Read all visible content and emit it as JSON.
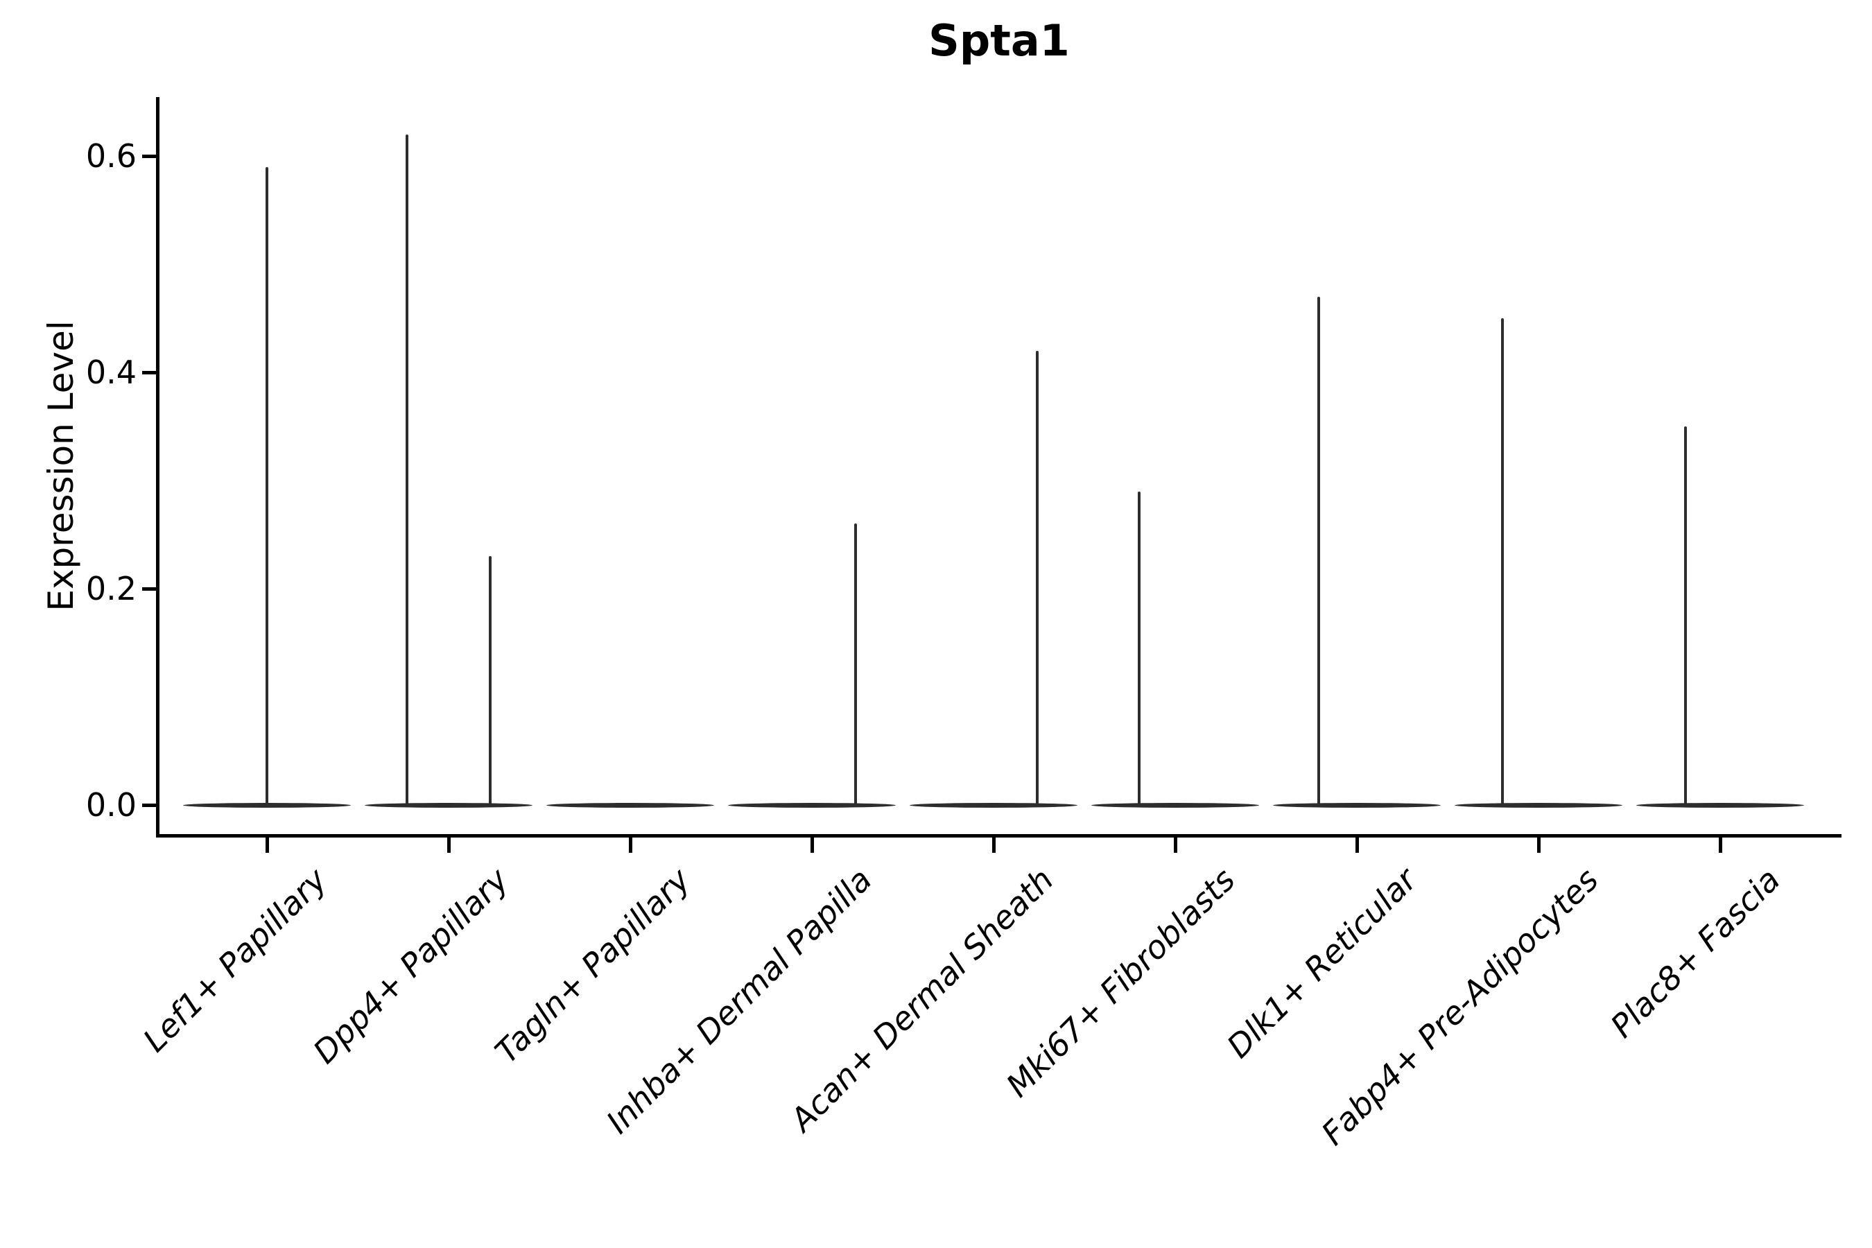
{
  "title": "Spta1",
  "chart_data": {
    "type": "violin",
    "title": "Spta1",
    "ylabel": "Expression Level",
    "xlabel": "",
    "ytick_labels": [
      "0.0",
      "0.2",
      "0.4",
      "0.6"
    ],
    "ytick_values": [
      0.0,
      0.2,
      0.4,
      0.6
    ],
    "ylim": [
      -0.028,
      0.653
    ],
    "grid": false,
    "legend": "none",
    "categories": [
      "Lef1+ Papillary",
      "Dpp4+ Papillary",
      "Tagln+ Papillary",
      "Inhba+ Dermal Papilla",
      "Acan+ Dermal Sheath",
      "Mki67+ Fibroblasts",
      "Dlk1+ Reticular",
      "Fabp4+ Pre-Adipocytes",
      "Plac8+ Fascia"
    ],
    "violins": [
      {
        "category": "Lef1+ Papillary",
        "bulk_at_zero": true,
        "spikes": [
          {
            "offset": 0.0,
            "max": 0.59
          }
        ]
      },
      {
        "category": "Dpp4+ Papillary",
        "bulk_at_zero": true,
        "spikes": [
          {
            "offset": -0.23,
            "max": 0.62
          },
          {
            "offset": 0.23,
            "max": 0.23
          }
        ]
      },
      {
        "category": "Tagln+ Papillary",
        "bulk_at_zero": true,
        "spikes": []
      },
      {
        "category": "Inhba+ Dermal Papilla",
        "bulk_at_zero": true,
        "spikes": [
          {
            "offset": 0.24,
            "max": 0.26
          }
        ]
      },
      {
        "category": "Acan+ Dermal Sheath",
        "bulk_at_zero": true,
        "spikes": [
          {
            "offset": 0.24,
            "max": 0.42
          }
        ]
      },
      {
        "category": "Mki67+ Fibroblasts",
        "bulk_at_zero": true,
        "spikes": [
          {
            "offset": -0.2,
            "max": 0.29
          }
        ]
      },
      {
        "category": "Dlk1+ Reticular",
        "bulk_at_zero": true,
        "spikes": [
          {
            "offset": -0.21,
            "max": 0.47
          }
        ]
      },
      {
        "category": "Fabp4+ Pre-Adipocytes",
        "bulk_at_zero": true,
        "spikes": [
          {
            "offset": -0.2,
            "max": 0.45
          }
        ]
      },
      {
        "category": "Plac8+ Fascia",
        "bulk_at_zero": true,
        "spikes": [
          {
            "offset": -0.19,
            "max": 0.35
          }
        ]
      }
    ],
    "colors": {
      "violin_stroke": "#2d2d2d",
      "axis": "#000000",
      "text": "#000000",
      "background": "#ffffff"
    }
  }
}
